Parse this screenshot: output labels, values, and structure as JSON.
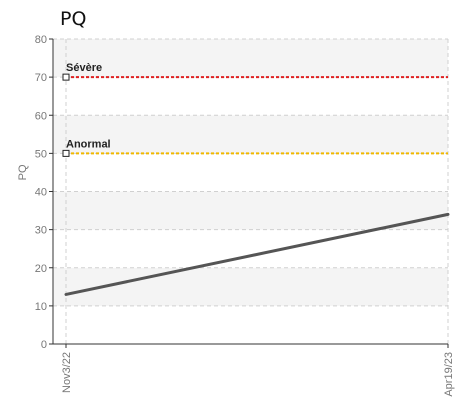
{
  "chart_data": {
    "type": "line",
    "title": "PQ",
    "ylabel": "PQ",
    "xlabel": "",
    "ylim": [
      0,
      80
    ],
    "yticks": [
      0,
      10,
      20,
      30,
      40,
      50,
      60,
      70,
      80
    ],
    "x": [
      "Nov3/22",
      "Apr19/23"
    ],
    "series": [
      {
        "values": [
          13,
          34
        ],
        "color": "#555555"
      }
    ],
    "thresholds": [
      {
        "label": "Sévère",
        "value": 70,
        "color": "#e02020"
      },
      {
        "label": "Anormal",
        "value": 50,
        "color": "#f0b800"
      }
    ],
    "band_colors": [
      "#f4f4f4",
      "#ffffff"
    ],
    "grid": true
  }
}
